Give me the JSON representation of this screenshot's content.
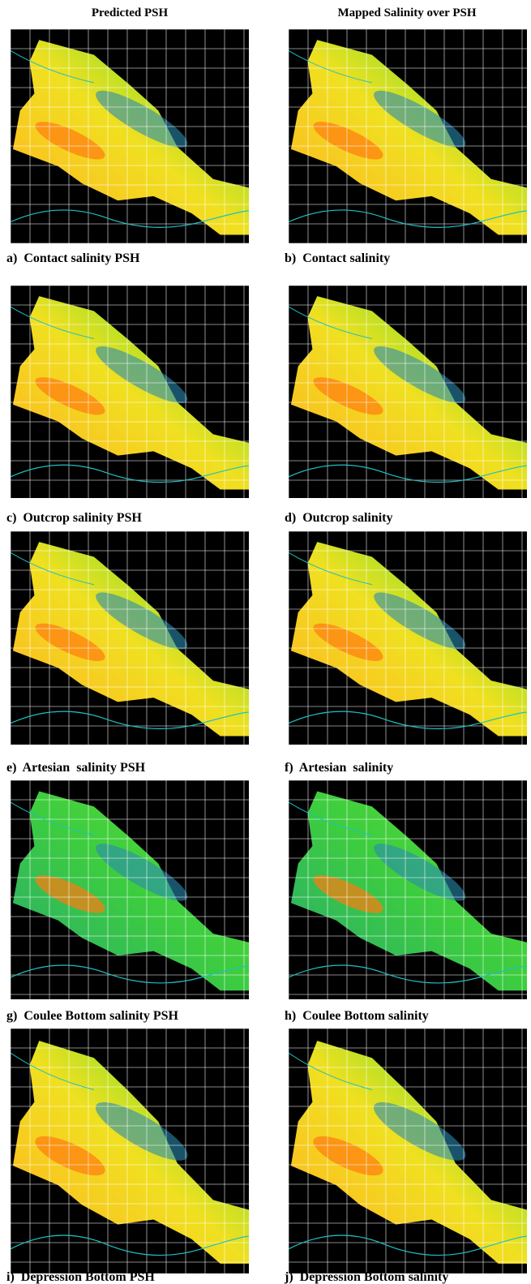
{
  "headers": {
    "left": "Predicted PSH",
    "right": "Mapped Salinity over PSH"
  },
  "panels": [
    {
      "caption": "a)  Contact salinity PSH"
    },
    {
      "caption": "b)  Contact salinity"
    },
    {
      "caption": "c)  Outcrop salinity PSH"
    },
    {
      "caption": "d)  Outcrop salinity"
    },
    {
      "caption": "e)  Artesian  salinity PSH"
    },
    {
      "caption": "f)  Artesian  salinity"
    },
    {
      "caption": "g)  Coulee Bottom salinity PSH"
    },
    {
      "caption": "h)  Coulee Bottom salinity"
    },
    {
      "caption": "i)  Depression Bottom PSH"
    },
    {
      "caption": "j)  Depression Bottom salinity"
    }
  ]
}
